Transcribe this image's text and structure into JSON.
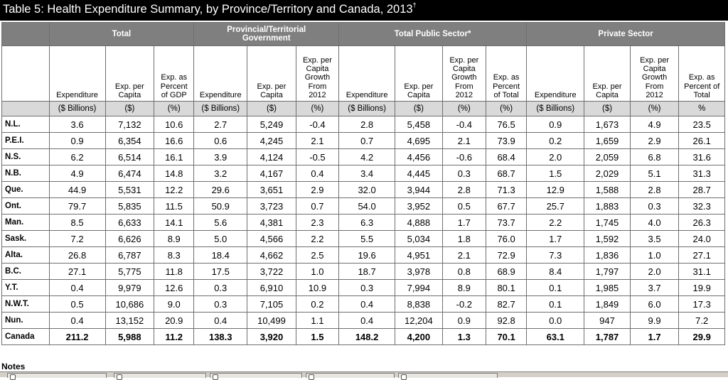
{
  "title": {
    "text": "Table 5: Health Expenditure Summary, by Province/Territory and Canada, 2013",
    "footnote_mark": "†"
  },
  "groups": {
    "total": "Total",
    "gov_line1": "Provincial/Territorial",
    "gov_line2": "Government",
    "public": "Total Public Sector*",
    "private": "Private Sector"
  },
  "subheaders": [
    [
      "Expenditure"
    ],
    [
      "Exp. per",
      "Capita"
    ],
    [
      "Exp. as",
      "Percent",
      "of GDP"
    ],
    [
      "Expenditure"
    ],
    [
      "Exp. per",
      "Capita"
    ],
    [
      "Exp. per",
      "Capita",
      "Growth",
      "From",
      "2012"
    ],
    [
      "Expenditure"
    ],
    [
      "Exp. per",
      "Capita"
    ],
    [
      "Exp. per",
      "Capita",
      "Growth",
      "From",
      "2012"
    ],
    [
      "Exp. as",
      "Percent",
      "of Total"
    ],
    [
      "Expenditure"
    ],
    [
      "Exp. per",
      "Capita"
    ],
    [
      "Exp. per",
      "Capita",
      "Growth",
      "From",
      "2012"
    ],
    [
      "Exp. as",
      "Percent of",
      "Total"
    ]
  ],
  "units": [
    "($ Billions)",
    "($)",
    "(%)",
    "($ Billions)",
    "($)",
    "(%)",
    "($ Billions)",
    "($)",
    "(%)",
    "(%)",
    "($ Billions)",
    "($)",
    "(%)",
    "%"
  ],
  "rows": [
    {
      "label": "N.L.",
      "values": [
        "3.6",
        "7,132",
        "10.6",
        "2.7",
        "5,249",
        "-0.4",
        "2.8",
        "5,458",
        "-0.4",
        "76.5",
        "0.9",
        "1,673",
        "4.9",
        "23.5"
      ]
    },
    {
      "label": "P.E.I.",
      "values": [
        "0.9",
        "6,354",
        "16.6",
        "0.6",
        "4,245",
        "2.1",
        "0.7",
        "4,695",
        "2.1",
        "73.9",
        "0.2",
        "1,659",
        "2.9",
        "26.1"
      ]
    },
    {
      "label": "N.S.",
      "values": [
        "6.2",
        "6,514",
        "16.1",
        "3.9",
        "4,124",
        "-0.5",
        "4.2",
        "4,456",
        "-0.6",
        "68.4",
        "2.0",
        "2,059",
        "6.8",
        "31.6"
      ]
    },
    {
      "label": "N.B.",
      "values": [
        "4.9",
        "6,474",
        "14.8",
        "3.2",
        "4,167",
        "0.4",
        "3.4",
        "4,445",
        "0.3",
        "68.7",
        "1.5",
        "2,029",
        "5.1",
        "31.3"
      ]
    },
    {
      "label": "Que.",
      "values": [
        "44.9",
        "5,531",
        "12.2",
        "29.6",
        "3,651",
        "2.9",
        "32.0",
        "3,944",
        "2.8",
        "71.3",
        "12.9",
        "1,588",
        "2.8",
        "28.7"
      ]
    },
    {
      "label": "Ont.",
      "values": [
        "79.7",
        "5,835",
        "11.5",
        "50.9",
        "3,723",
        "0.7",
        "54.0",
        "3,952",
        "0.5",
        "67.7",
        "25.7",
        "1,883",
        "0.3",
        "32.3"
      ]
    },
    {
      "label": "Man.",
      "values": [
        "8.5",
        "6,633",
        "14.1",
        "5.6",
        "4,381",
        "2.3",
        "6.3",
        "4,888",
        "1.7",
        "73.7",
        "2.2",
        "1,745",
        "4.0",
        "26.3"
      ]
    },
    {
      "label": "Sask.",
      "values": [
        "7.2",
        "6,626",
        "8.9",
        "5.0",
        "4,566",
        "2.2",
        "5.5",
        "5,034",
        "1.8",
        "76.0",
        "1.7",
        "1,592",
        "3.5",
        "24.0"
      ]
    },
    {
      "label": "Alta.",
      "values": [
        "26.8",
        "6,787",
        "8.3",
        "18.4",
        "4,662",
        "2.5",
        "19.6",
        "4,951",
        "2.1",
        "72.9",
        "7.3",
        "1,836",
        "1.0",
        "27.1"
      ]
    },
    {
      "label": "B.C.",
      "values": [
        "27.1",
        "5,775",
        "11.8",
        "17.5",
        "3,722",
        "1.0",
        "18.7",
        "3,978",
        "0.8",
        "68.9",
        "8.4",
        "1,797",
        "2.0",
        "31.1"
      ]
    },
    {
      "label": "Y.T.",
      "values": [
        "0.4",
        "9,979",
        "12.6",
        "0.3",
        "6,910",
        "10.9",
        "0.3",
        "7,994",
        "8.9",
        "80.1",
        "0.1",
        "1,985",
        "3.7",
        "19.9"
      ]
    },
    {
      "label": "N.W.T.",
      "values": [
        "0.5",
        "10,686",
        "9.0",
        "0.3",
        "7,105",
        "0.2",
        "0.4",
        "8,838",
        "-0.2",
        "82.7",
        "0.1",
        "1,849",
        "6.0",
        "17.3"
      ]
    },
    {
      "label": "Nun.",
      "values": [
        "0.4",
        "13,152",
        "20.9",
        "0.4",
        "10,499",
        "1.1",
        "0.4",
        "12,204",
        "0.9",
        "92.8",
        "0.0",
        "947",
        "9.9",
        "7.2"
      ]
    },
    {
      "label": "Canada",
      "values": [
        "211.2",
        "5,988",
        "11.2",
        "138.3",
        "3,920",
        "1.5",
        "148.2",
        "4,200",
        "1.3",
        "70.1",
        "63.1",
        "1,787",
        "1.7",
        "29.9"
      ]
    }
  ],
  "notes_label": "Notes",
  "colors": {
    "title_bg": "#000000",
    "header_bg": "#7f7f7f",
    "units_bg": "#d9d9d9"
  }
}
